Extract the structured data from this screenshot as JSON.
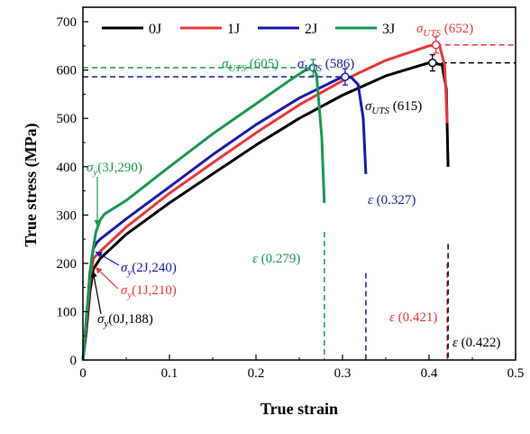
{
  "chart_data": {
    "type": "line",
    "xlabel": "True strain",
    "ylabel": "True  stress (MPa)",
    "xlim": [
      0,
      0.5
    ],
    "ylim": [
      0,
      730
    ],
    "x_ticks": [
      "0",
      "0.1",
      "0.2",
      "0.3",
      "0.4",
      "0.5"
    ],
    "y_ticks": [
      "0",
      "100",
      "200",
      "300",
      "400",
      "500",
      "600",
      "700"
    ],
    "legend": {
      "placement": "top-left"
    },
    "series": [
      {
        "name": "0J",
        "color": "#000000",
        "points": [
          [
            0,
            0
          ],
          [
            0.004,
            60
          ],
          [
            0.008,
            140
          ],
          [
            0.012,
            188
          ],
          [
            0.02,
            210
          ],
          [
            0.05,
            260
          ],
          [
            0.1,
            325
          ],
          [
            0.15,
            385
          ],
          [
            0.2,
            445
          ],
          [
            0.25,
            500
          ],
          [
            0.3,
            548
          ],
          [
            0.35,
            588
          ],
          [
            0.4,
            615
          ],
          [
            0.415,
            611
          ],
          [
            0.42,
            560
          ],
          [
            0.422,
            400
          ]
        ],
        "marker": [
          0.404,
          615
        ]
      },
      {
        "name": "1J",
        "color": "#e8393c",
        "points": [
          [
            0,
            0
          ],
          [
            0.004,
            70
          ],
          [
            0.008,
            160
          ],
          [
            0.012,
            210
          ],
          [
            0.02,
            225
          ],
          [
            0.05,
            275
          ],
          [
            0.1,
            345
          ],
          [
            0.15,
            408
          ],
          [
            0.2,
            470
          ],
          [
            0.25,
            528
          ],
          [
            0.3,
            578
          ],
          [
            0.35,
            620
          ],
          [
            0.4,
            650
          ],
          [
            0.412,
            652
          ],
          [
            0.418,
            610
          ],
          [
            0.421,
            490
          ]
        ],
        "marker": [
          0.408,
          652
        ]
      },
      {
        "name": "2J",
        "color": "#1a1aaa",
        "points": [
          [
            0,
            0
          ],
          [
            0.004,
            80
          ],
          [
            0.008,
            180
          ],
          [
            0.012,
            230
          ],
          [
            0.016,
            243
          ],
          [
            0.02,
            250
          ],
          [
            0.05,
            292
          ],
          [
            0.1,
            358
          ],
          [
            0.15,
            425
          ],
          [
            0.2,
            487
          ],
          [
            0.25,
            542
          ],
          [
            0.3,
            586
          ],
          [
            0.31,
            585
          ],
          [
            0.318,
            570
          ],
          [
            0.324,
            500
          ],
          [
            0.327,
            385
          ]
        ],
        "marker": [
          0.303,
          586
        ]
      },
      {
        "name": "3J",
        "color": "#1a9950",
        "points": [
          [
            0,
            0
          ],
          [
            0.004,
            90
          ],
          [
            0.01,
            210
          ],
          [
            0.015,
            265
          ],
          [
            0.02,
            290
          ],
          [
            0.025,
            302
          ],
          [
            0.05,
            330
          ],
          [
            0.1,
            400
          ],
          [
            0.15,
            468
          ],
          [
            0.2,
            530
          ],
          [
            0.24,
            580
          ],
          [
            0.26,
            603
          ],
          [
            0.266,
            605
          ],
          [
            0.27,
            590
          ],
          [
            0.276,
            460
          ],
          [
            0.279,
            325
          ]
        ],
        "marker": [
          0.266,
          605
        ]
      }
    ],
    "annotations": {
      "uts_3J": {
        "symbol": "σ",
        "sub": "UTS",
        "value": " (605)",
        "color": "#1a9950"
      },
      "uts_2J": {
        "symbol": "σ",
        "sub": "UTS",
        "value": " (586)",
        "color": "#1a1aaa"
      },
      "uts_1J": {
        "symbol": "σ",
        "sub": "UTS",
        "value": " (652)",
        "color": "#e8393c"
      },
      "uts_0J": {
        "symbol": "σ",
        "sub": "UTS",
        "value": " (615)",
        "color": "#000000"
      },
      "ys_3J": {
        "symbol": "σ",
        "sub": "y",
        "value": "(3J,290)",
        "color": "#1a9950"
      },
      "ys_2J": {
        "symbol": "σ",
        "sub": "y",
        "value": "(2J,240)",
        "color": "#1a1aaa"
      },
      "ys_1J": {
        "symbol": "σ",
        "sub": "y",
        "value": "(1J,210)",
        "color": "#e8393c"
      },
      "ys_0J": {
        "symbol": "σ",
        "sub": "y",
        "value": "(0J,188)",
        "color": "#000000"
      },
      "eps_3J": {
        "symbol": "ε",
        "value": " (0.279)",
        "color": "#1a9950"
      },
      "eps_2J": {
        "symbol": "ε",
        "value": " (0.327)",
        "color": "#1a1aaa"
      },
      "eps_1J": {
        "symbol": "ε",
        "value": " (0.421)",
        "color": "#e8393c"
      },
      "eps_0J": {
        "symbol": "ε",
        "value": " (0.422)",
        "color": "#000000"
      }
    }
  }
}
